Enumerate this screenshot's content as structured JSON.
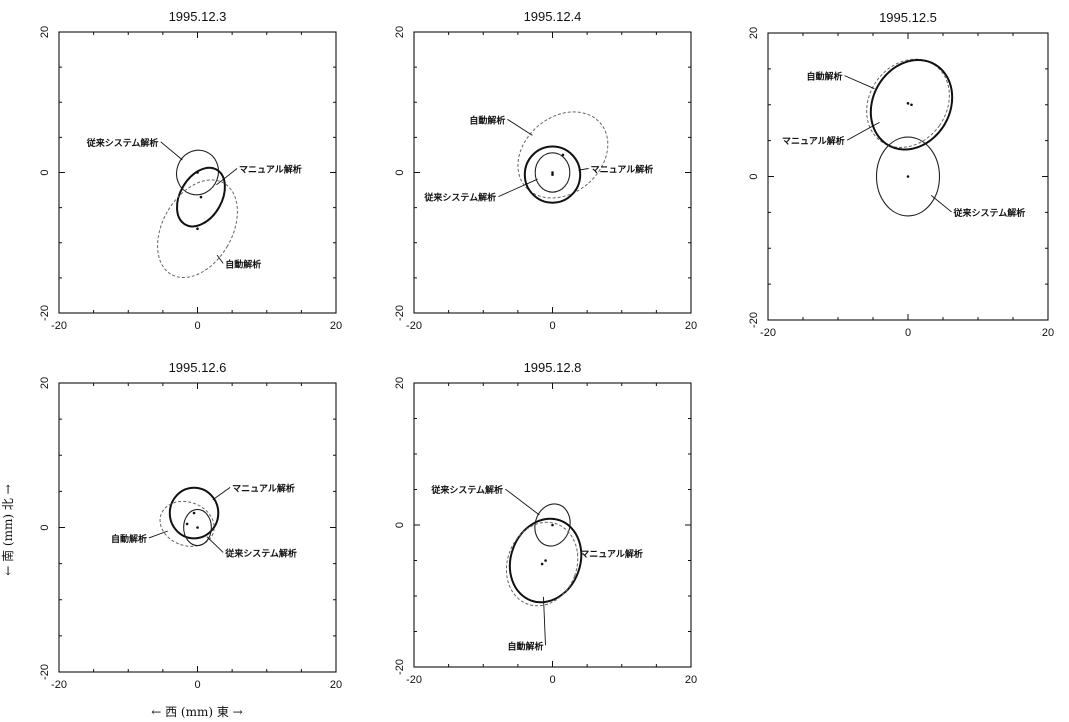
{
  "figure": {
    "x_axis_label": "←  西  (mm)  東  →",
    "y_axis_label": "←  南  (mm)  北  →"
  },
  "chart_data": [
    {
      "type": "scatter",
      "title": "1995.12.3",
      "xlim": [
        -20,
        20
      ],
      "ylim": [
        -20,
        20
      ],
      "xticks": [
        "-20",
        "0",
        "20"
      ],
      "yticks": [
        "-20",
        "0",
        "20"
      ],
      "grid": false,
      "series": [
        {
          "name": "従来システム解析",
          "style": "solid-thin",
          "center": [
            0,
            0
          ],
          "rx": 3,
          "ry": 3.2,
          "angle": 20
        },
        {
          "name": "マニュアル解析",
          "style": "solid-thick",
          "center": [
            0.5,
            -3.5
          ],
          "rx": 3,
          "ry": 4.5,
          "angle": 30
        },
        {
          "name": "自動解析",
          "style": "dashed",
          "center": [
            0,
            -8
          ],
          "rx": 5,
          "ry": 7.5,
          "angle": 30
        }
      ],
      "annotations": [
        {
          "text": "従来システム解析",
          "at": [
            -16,
            3.8
          ]
        },
        {
          "text": "マニュアル解析",
          "at": [
            6,
            0
          ]
        },
        {
          "text": "自動解析",
          "at": [
            4,
            -13.5
          ]
        }
      ]
    },
    {
      "type": "scatter",
      "title": "1995.12.4",
      "xlim": [
        -20,
        20
      ],
      "ylim": [
        -20,
        20
      ],
      "xticks": [
        "-20",
        "0",
        "20"
      ],
      "yticks": [
        "-20",
        "0",
        "20"
      ],
      "grid": false,
      "series": [
        {
          "name": "自動解析",
          "style": "dashed",
          "center": [
            1.5,
            2.5
          ],
          "rx": 5.5,
          "ry": 7,
          "angle": 50
        },
        {
          "name": "マニュアル解析",
          "style": "solid-thick",
          "center": [
            0,
            -0.3
          ],
          "rx": 4,
          "ry": 4,
          "angle": 0
        },
        {
          "name": "従来システム解析",
          "style": "solid-thin",
          "center": [
            0,
            0
          ],
          "rx": 2.5,
          "ry": 2.8,
          "angle": 0
        }
      ],
      "annotations": [
        {
          "text": "自動解析",
          "at": [
            -12,
            7
          ]
        },
        {
          "text": "マニュアル解析",
          "at": [
            5.5,
            0
          ]
        },
        {
          "text": "従来システム解析",
          "at": [
            -18.5,
            -4
          ]
        }
      ]
    },
    {
      "type": "scatter",
      "title": "1995.12.5",
      "xlim": [
        -20,
        20
      ],
      "ylim": [
        -20,
        20
      ],
      "xticks": [
        "-20",
        "0",
        "20"
      ],
      "yticks": [
        "-20",
        "0",
        "20"
      ],
      "grid": false,
      "series": [
        {
          "name": "自動解析",
          "style": "dashed",
          "center": [
            0,
            10.2
          ],
          "rx": 5.5,
          "ry": 6.5,
          "angle": 35
        },
        {
          "name": "マニュアル解析",
          "style": "solid-thick",
          "center": [
            0.5,
            10
          ],
          "rx": 5.5,
          "ry": 6.5,
          "angle": 30
        },
        {
          "name": "従来システム解析",
          "style": "solid-thin",
          "center": [
            0,
            0
          ],
          "rx": 4.5,
          "ry": 5.5,
          "angle": 0
        }
      ],
      "annotations": [
        {
          "text": "自動解析",
          "at": [
            -14.5,
            13.5
          ]
        },
        {
          "text": "マニュアル解析",
          "at": [
            -18,
            4.5
          ]
        },
        {
          "text": "従来システム解析",
          "at": [
            6.5,
            -5.5
          ]
        }
      ]
    },
    {
      "type": "scatter",
      "title": "1995.12.6",
      "xlim": [
        -20,
        20
      ],
      "ylim": [
        -20,
        20
      ],
      "xticks": [
        "-20",
        "0",
        "20"
      ],
      "yticks": [
        "-20",
        "0",
        "20"
      ],
      "grid": false,
      "series": [
        {
          "name": "マニュアル解析",
          "style": "solid-thick",
          "center": [
            -0.5,
            2
          ],
          "rx": 3.5,
          "ry": 3.5,
          "angle": 0
        },
        {
          "name": "自動解析",
          "style": "dashed",
          "center": [
            -1.5,
            0.5
          ],
          "rx": 4,
          "ry": 3,
          "angle": 20
        },
        {
          "name": "従来システム解析",
          "style": "solid-thin",
          "center": [
            0,
            0
          ],
          "rx": 2,
          "ry": 2.5,
          "angle": 0
        }
      ],
      "annotations": [
        {
          "text": "マニュアル解析",
          "at": [
            5,
            5
          ]
        },
        {
          "text": "自動解析",
          "at": [
            -12.5,
            -2
          ]
        },
        {
          "text": "従来システム解析",
          "at": [
            4,
            -4
          ]
        }
      ]
    },
    {
      "type": "scatter",
      "title": "1995.12.8",
      "xlim": [
        -20,
        20
      ],
      "ylim": [
        -20,
        20
      ],
      "xticks": [
        "-20",
        "0",
        "20"
      ],
      "yticks": [
        "-20",
        "0",
        "20"
      ],
      "grid": false,
      "series": [
        {
          "name": "従来システム解析",
          "style": "solid-thin",
          "center": [
            0,
            0
          ],
          "rx": 2.5,
          "ry": 3,
          "angle": 15
        },
        {
          "name": "マニュアル解析",
          "style": "solid-thick",
          "center": [
            -1,
            -5
          ],
          "rx": 5,
          "ry": 6,
          "angle": 20
        },
        {
          "name": "自動解析",
          "style": "dashed",
          "center": [
            -1.5,
            -5.5
          ],
          "rx": 5,
          "ry": 6,
          "angle": 20
        }
      ],
      "annotations": [
        {
          "text": "従来システム解析",
          "at": [
            -17.5,
            4.5
          ]
        },
        {
          "text": "マニュアル解析",
          "at": [
            4,
            -4.5
          ]
        },
        {
          "text": "自動解析",
          "at": [
            -6.5,
            -17.5
          ]
        }
      ]
    }
  ]
}
